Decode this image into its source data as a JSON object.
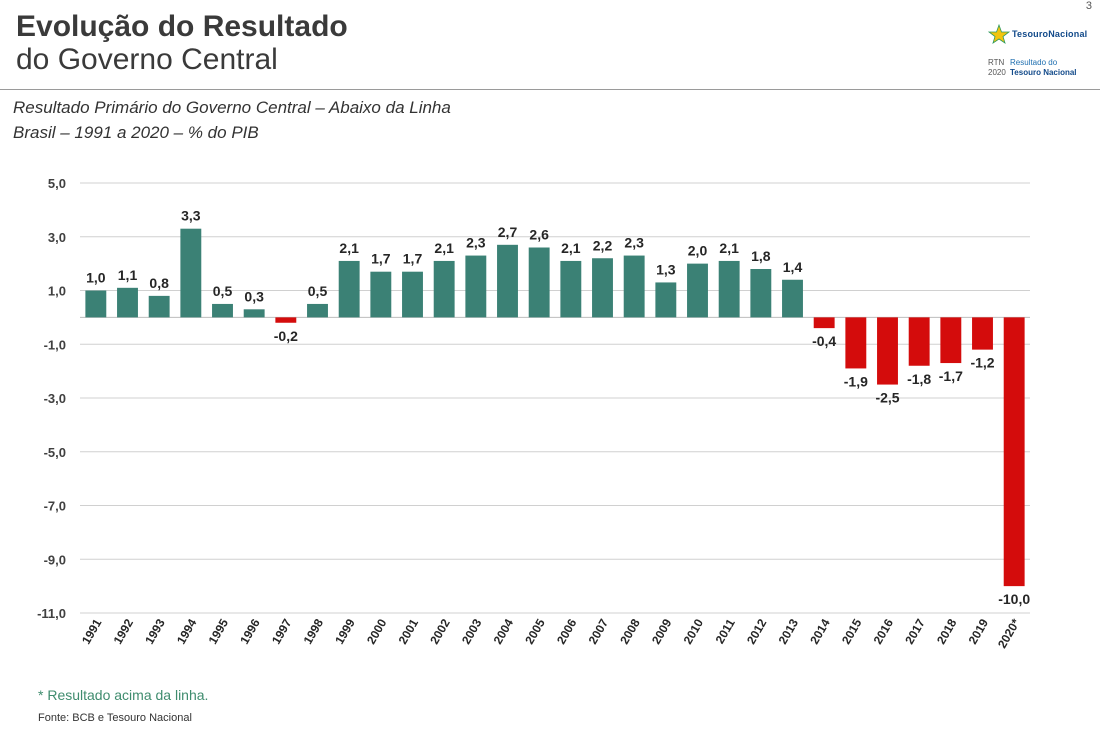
{
  "page_number": "3",
  "header": {
    "title_line1": "Evolução do Resultado",
    "title_line2": "do Governo Central"
  },
  "logo": {
    "brand": "TesouroNacional",
    "code": "RTN",
    "year": "2020",
    "line1": "Resultado do",
    "line2": "Tesouro Nacional"
  },
  "subtitle": {
    "line1": "Resultado Primário do Governo Central – Abaixo da Linha",
    "line2": "Brasil – 1991 a 2020 – % do PIB"
  },
  "colors": {
    "positive": "#3b8175",
    "negative": "#d40c0c",
    "grid": "#d0d0d0",
    "footnote": "#3f8c6e"
  },
  "chart_data": {
    "type": "bar",
    "title": "Resultado Primário do Governo Central – Abaixo da Linha",
    "xlabel": "",
    "ylabel": "% do PIB",
    "ylim": [
      -11,
      5
    ],
    "yticks": [
      5,
      3,
      1,
      -1,
      -3,
      -5,
      -7,
      -9,
      -11
    ],
    "ytick_labels": [
      "5,0",
      "3,0",
      "1,0",
      "-1,0",
      "-3,0",
      "-5,0",
      "-7,0",
      "-9,0",
      "-11,0"
    ],
    "grid": true,
    "categories": [
      "1991",
      "1992",
      "1993",
      "1994",
      "1995",
      "1996",
      "1997",
      "1998",
      "1999",
      "2000",
      "2001",
      "2002",
      "2003",
      "2004",
      "2005",
      "2006",
      "2007",
      "2008",
      "2009",
      "2010",
      "2011",
      "2012",
      "2013",
      "2014",
      "2015",
      "2016",
      "2017",
      "2018",
      "2019",
      "2020*"
    ],
    "values": [
      1.0,
      1.1,
      0.8,
      3.3,
      0.5,
      0.3,
      -0.2,
      0.5,
      2.1,
      1.7,
      1.7,
      2.1,
      2.3,
      2.7,
      2.6,
      2.1,
      2.2,
      2.3,
      1.3,
      2.0,
      2.1,
      1.8,
      1.4,
      -0.4,
      -1.9,
      -2.5,
      -1.8,
      -1.7,
      -1.2,
      -10.0
    ],
    "labels": [
      "1,0",
      "1,1",
      "0,8",
      "3,3",
      "0,5",
      "0,3",
      "-0,2",
      "0,5",
      "2,1",
      "1,7",
      "1,7",
      "2,1",
      "2,3",
      "2,7",
      "2,6",
      "2,1",
      "2,2",
      "2,3",
      "1,3",
      "2,0",
      "2,1",
      "1,8",
      "1,4",
      "-0,4",
      "-1,9",
      "-2,5",
      "-1,8",
      "-1,7",
      "-1,2",
      "-10,0"
    ]
  },
  "footnote": "* Resultado acima da linha.",
  "source": "Fonte: BCB e Tesouro Nacional"
}
